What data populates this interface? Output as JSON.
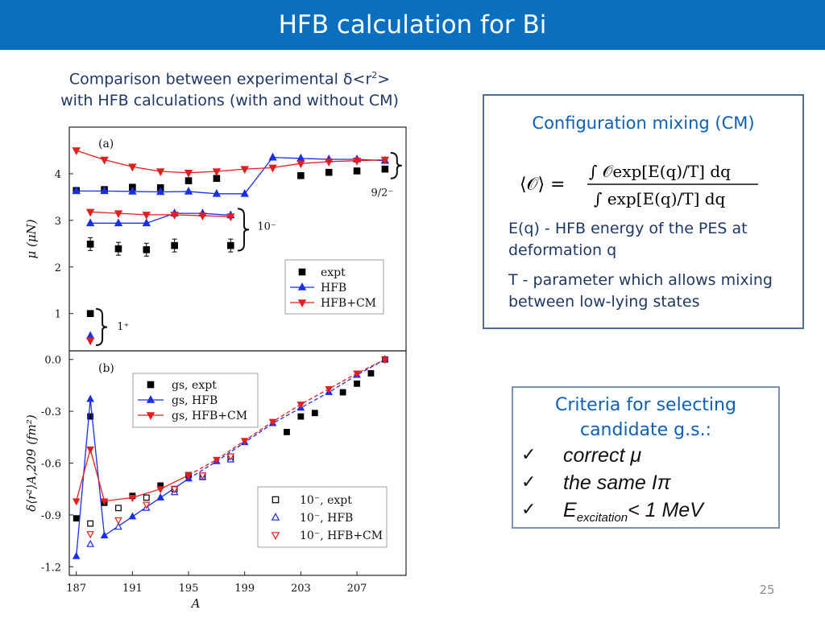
{
  "slide": {
    "title": "HFB calculation for Bi",
    "intro_line1": "Comparison between experimental δ<r",
    "intro_sup": "2",
    "intro_line1_end": ">",
    "intro_line2": "with HFB calculations (with and without CM)",
    "page_number": "25"
  },
  "cm_box": {
    "title": "Configuration mixing (CM)",
    "formula": "⟨𝒪⟩ = ∫ 𝒪 exp[E(q)/T] dq / ∫ exp[E(q)/T] dq",
    "e_text": "E(q) - HFB energy of the PES at deformation q",
    "t_text": "T - parameter which allows mixing between low-lying states"
  },
  "criteria": {
    "title": "Criteria for selecting candidate g.s.:",
    "check": "✓",
    "item1": "correct  μ",
    "item2": "the same Iπ",
    "item3_main": "E",
    "item3_sub": "excitation",
    "item3_tail": "< 1 MeV"
  },
  "colors": {
    "title_bar": "#0a6fbf",
    "expt": "#000000",
    "hfb": "#1a2ef0",
    "hfb_cm": "#e31e1e"
  },
  "chart_data": [
    {
      "panel": "(a)",
      "type": "scatter",
      "ylabel": "μ (μN)",
      "xlim": [
        186.5,
        210.5
      ],
      "ylim": [
        0.2,
        5.0
      ],
      "yticks": [
        1,
        2,
        3,
        4
      ],
      "legend": {
        "position": "lower-right",
        "labels": [
          "expt",
          "HFB",
          "HFB+CM"
        ]
      },
      "group_labels": [
        "9/2⁻",
        "10⁻",
        "1⁺"
      ],
      "series": [
        {
          "name": "expt",
          "marker": "filled-square",
          "points": [
            [
              187,
              3.64
            ],
            [
              189,
              3.66
            ],
            [
              191,
              3.71
            ],
            [
              193,
              3.7
            ],
            [
              195,
              3.85
            ],
            [
              197,
              3.9
            ],
            [
              203,
              3.96
            ],
            [
              205,
              4.03
            ],
            [
              207,
              4.06
            ],
            [
              209,
              4.1
            ],
            [
              188,
              2.49
            ],
            [
              190,
              2.39
            ],
            [
              192,
              2.37
            ],
            [
              194,
              2.46
            ],
            [
              198,
              2.46
            ],
            [
              188,
              1.0
            ]
          ]
        },
        {
          "name": "HFB",
          "marker": "filled-triangle-up",
          "segments": [
            [
              [
                187,
                3.63
              ],
              [
                189,
                3.63
              ],
              [
                191,
                3.62
              ],
              [
                193,
                3.61
              ],
              [
                195,
                3.62
              ],
              [
                197,
                3.57
              ],
              [
                199,
                3.57
              ],
              [
                201,
                4.35
              ],
              [
                203,
                4.33
              ],
              [
                205,
                4.31
              ],
              [
                207,
                4.31
              ],
              [
                209,
                4.28
              ]
            ],
            [
              [
                188,
                2.94
              ],
              [
                190,
                2.94
              ],
              [
                192,
                2.94
              ],
              [
                194,
                3.15
              ],
              [
                196,
                3.15
              ],
              [
                198,
                3.11
              ]
            ],
            [
              [
                188,
                0.52
              ]
            ]
          ]
        },
        {
          "name": "HFB+CM",
          "marker": "filled-triangle-down",
          "segments": [
            [
              [
                187,
                4.5
              ],
              [
                189,
                4.3
              ],
              [
                191,
                4.15
              ],
              [
                193,
                4.05
              ],
              [
                195,
                4.02
              ],
              [
                197,
                4.05
              ],
              [
                199,
                4.1
              ],
              [
                201,
                4.13
              ],
              [
                203,
                4.22
              ],
              [
                205,
                4.26
              ],
              [
                207,
                4.28
              ],
              [
                209,
                4.3
              ]
            ],
            [
              [
                188,
                3.18
              ],
              [
                190,
                3.15
              ],
              [
                192,
                3.12
              ],
              [
                194,
                3.12
              ],
              [
                196,
                3.1
              ],
              [
                198,
                3.08
              ]
            ],
            [
              [
                188,
                0.42
              ]
            ]
          ]
        }
      ]
    },
    {
      "panel": "(b)",
      "type": "line",
      "xlabel": "A",
      "ylabel": "δ⟨r²⟩A,209 (fm²)",
      "xlim": [
        186.5,
        210.5
      ],
      "ylim": [
        -1.25,
        0.05
      ],
      "xticks": [
        187,
        191,
        195,
        199,
        203,
        207
      ],
      "yticks": [
        0.0,
        -0.3,
        -0.6,
        -0.9,
        -1.2
      ],
      "legend_top": {
        "position": "top-left",
        "labels": [
          "gs, expt",
          "gs, HFB",
          "gs, HFB+CM"
        ]
      },
      "legend_bottom": {
        "position": "bottom-right",
        "labels": [
          "10⁻, expt",
          "10⁻, HFB",
          "10⁻, HFB+CM"
        ]
      },
      "series": [
        {
          "name": "gs, expt",
          "marker": "filled-square",
          "points": [
            [
              187,
              -0.92
            ],
            [
              188,
              -0.33
            ],
            [
              189,
              -0.83
            ],
            [
              191,
              -0.79
            ],
            [
              193,
              -0.73
            ],
            [
              195,
              -0.67
            ],
            [
              202,
              -0.42
            ],
            [
              203,
              -0.33
            ],
            [
              204,
              -0.31
            ],
            [
              206,
              -0.19
            ],
            [
              207,
              -0.14
            ],
            [
              208,
              -0.08
            ],
            [
              209,
              0.0
            ]
          ]
        },
        {
          "name": "gs, HFB",
          "marker": "filled-triangle-up",
          "solid": [
            [
              187,
              -1.14
            ],
            [
              188,
              -0.23
            ],
            [
              189,
              -1.02
            ],
            [
              191,
              -0.91
            ],
            [
              193,
              -0.8
            ],
            [
              195,
              -0.69
            ]
          ],
          "dashed": [
            [
              195,
              -0.69
            ],
            [
              197,
              -0.59
            ],
            [
              199,
              -0.48
            ],
            [
              201,
              -0.37
            ],
            [
              203,
              -0.28
            ],
            [
              205,
              -0.19
            ],
            [
              207,
              -0.09
            ],
            [
              209,
              0.0
            ]
          ]
        },
        {
          "name": "gs, HFB+CM",
          "marker": "filled-triangle-down",
          "solid": [
            [
              187,
              -0.82
            ],
            [
              188,
              -0.52
            ],
            [
              189,
              -0.82
            ],
            [
              191,
              -0.8
            ],
            [
              193,
              -0.75
            ],
            [
              195,
              -0.67
            ]
          ],
          "dashed": [
            [
              195,
              -0.67
            ],
            [
              197,
              -0.58
            ],
            [
              199,
              -0.47
            ],
            [
              201,
              -0.36
            ],
            [
              203,
              -0.26
            ],
            [
              205,
              -0.17
            ],
            [
              207,
              -0.08
            ],
            [
              209,
              0.0
            ]
          ]
        },
        {
          "name": "10⁻, expt",
          "marker": "open-square",
          "points": [
            [
              188,
              -0.95
            ],
            [
              190,
              -0.86
            ],
            [
              192,
              -0.8
            ],
            [
              194,
              -0.75
            ],
            [
              196,
              -0.68
            ],
            [
              198,
              -0.57
            ]
          ]
        },
        {
          "name": "10⁻, HFB",
          "marker": "open-triangle-up",
          "points": [
            [
              188,
              -1.07
            ],
            [
              190,
              -0.97
            ],
            [
              192,
              -0.86
            ],
            [
              194,
              -0.77
            ],
            [
              196,
              -0.68
            ],
            [
              198,
              -0.58
            ]
          ]
        },
        {
          "name": "10⁻, HFB+CM",
          "marker": "open-triangle-down",
          "points": [
            [
              188,
              -1.01
            ],
            [
              190,
              -0.93
            ],
            [
              192,
              -0.84
            ],
            [
              194,
              -0.75
            ],
            [
              196,
              -0.67
            ],
            [
              198,
              -0.56
            ]
          ]
        }
      ]
    }
  ]
}
